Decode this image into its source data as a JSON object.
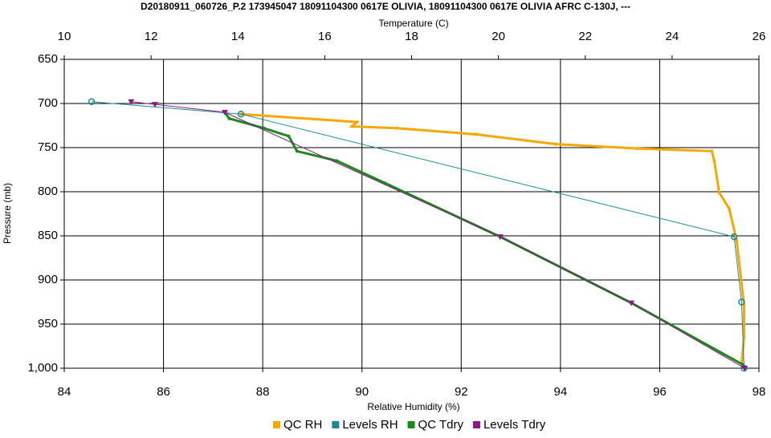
{
  "chart_data": {
    "type": "line",
    "title": "D20180911_060726_P.2 173945047 18091104300 0617E OLIVIA, 18091104300 0617E OLIVIA AFRC C-130J, ---",
    "x_label": "Relative Humidity (%)",
    "x2_label": "Temperature (C)",
    "y_label": "Pressure (mb)",
    "xlim": [
      84,
      98
    ],
    "xticks": [
      84,
      86,
      88,
      90,
      92,
      94,
      96,
      98
    ],
    "x2lim": [
      10,
      26
    ],
    "x2ticks": [
      10,
      12,
      14,
      16,
      18,
      20,
      22,
      24,
      26
    ],
    "ylim": [
      1000,
      650
    ],
    "yticks": [
      650,
      700,
      750,
      800,
      850,
      900,
      950,
      {
        "value": 1000,
        "label": "1,000"
      }
    ],
    "grid": true,
    "legend": "bottom",
    "series": [
      {
        "name": "QC RH",
        "color": "#f5a800",
        "marker": "dot",
        "x": [
          87.56,
          89.9,
          89.8,
          90.7,
          92.3,
          93.9,
          95.55,
          97.05,
          97.1,
          97.2,
          97.4,
          97.55,
          97.7,
          97.7,
          97.65
        ],
        "values": [
          712,
          721,
          726,
          728,
          735,
          746,
          751,
          754,
          765,
          801,
          819,
          855,
          928,
          964,
          996
        ]
      },
      {
        "name": "Levels RH",
        "color": "#1a8a9a",
        "marker": "circle",
        "x": [
          84.55,
          87.56,
          97.5,
          97.65,
          97.7
        ],
        "values": [
          698,
          712,
          851,
          925,
          1000
        ]
      },
      {
        "name": "QC Tdry",
        "color": "#1a8a1a",
        "marker": "dot",
        "axis": "x2",
        "x": [
          13.7,
          13.8,
          14.6,
          15.17,
          15.36,
          16.28,
          17.38,
          20.04,
          23.06,
          25.63
        ],
        "values": [
          710,
          717,
          728,
          737,
          754,
          765,
          790,
          851,
          926,
          996
        ]
      },
      {
        "name": "Levels Tdry",
        "color": "#8a1a8a",
        "marker": "triangle",
        "axis": "x2",
        "x": [
          11.54,
          12.09,
          13.7,
          20.04,
          23.06,
          25.67
        ],
        "values": [
          698,
          701,
          710,
          851,
          926,
          1000
        ]
      }
    ]
  }
}
